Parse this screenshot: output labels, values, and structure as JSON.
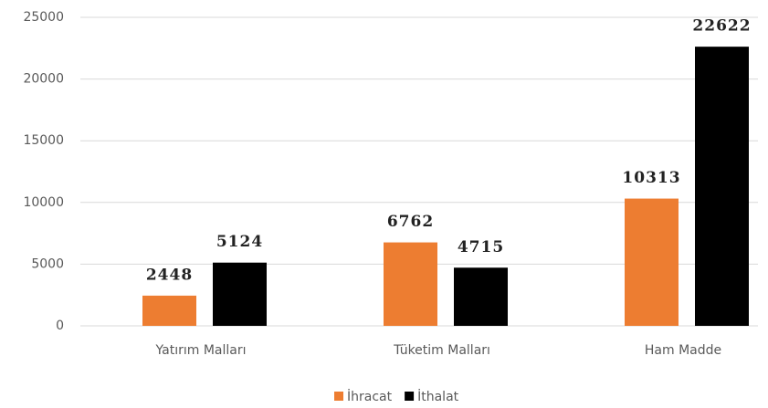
{
  "chart_data": {
    "type": "bar",
    "categories": [
      "Yatırım Malları",
      "Tüketim Malları",
      "Ham Madde"
    ],
    "series": [
      {
        "name": "İhracat",
        "color": "#ed7d31",
        "values": [
          2448,
          6762,
          10313
        ]
      },
      {
        "name": "İthalat",
        "color": "#000000",
        "values": [
          5124,
          4715,
          22622
        ]
      }
    ],
    "ylim": [
      0,
      25000
    ],
    "yticks": [
      0,
      5000,
      10000,
      15000,
      20000,
      25000
    ],
    "grid": true,
    "legend": "bottom"
  }
}
